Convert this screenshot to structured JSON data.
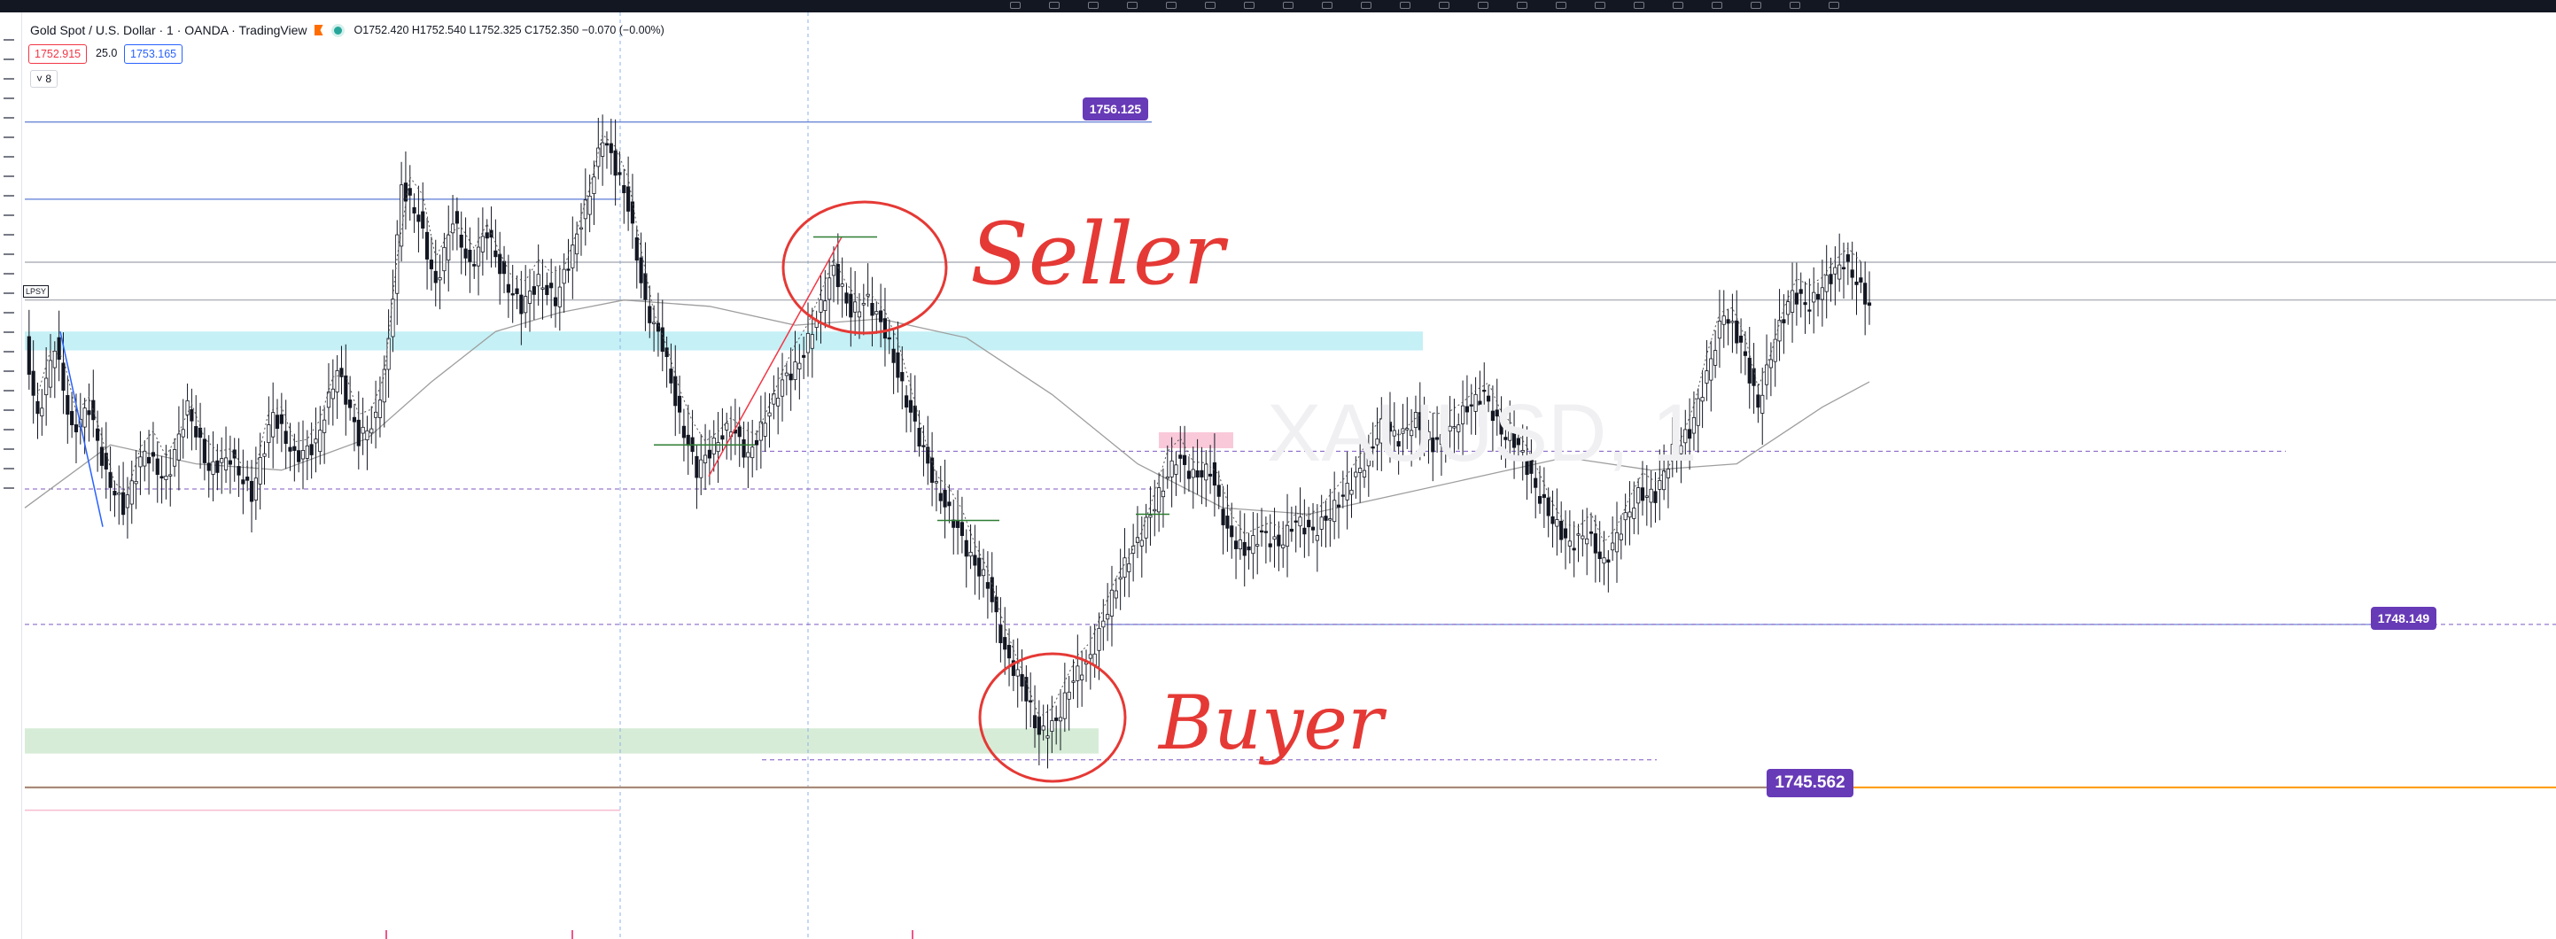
{
  "header": {
    "symbol": "Gold Spot / U.S. Dollar · 1 · OANDA · TradingView",
    "ohlc": "O1752.420 H1752.540 L1752.325 C1752.350 −0.070 (−0.00%)"
  },
  "trade": {
    "bid": "1752.915",
    "spread": "25.0",
    "ask": "1753.165"
  },
  "indicators_toggle": "˅ 8",
  "lp_tag": "LPSY",
  "price_labels": [
    "1756.125",
    "1748.149",
    "1745.562"
  ],
  "annotations": {
    "seller": "Seller",
    "buyer": "Buyer"
  },
  "colors": {
    "up": "#131722",
    "down": "#131722",
    "wick": "#131722",
    "zone_top": "#b2ebf2",
    "zone_bottom": "#c8e6c9",
    "zone_mid": "#f8bbd0",
    "ma": "#9e9e9e",
    "hline": "#5b7bd5",
    "price_line": "#ff9800",
    "annotation": "#e53935",
    "label_bg": "#673ab7"
  },
  "chart_data": {
    "type": "candlestick",
    "symbol": "XAUUSD",
    "timeframe": "1",
    "ylim": [
      1744.0,
      1757.5
    ],
    "series": [
      {
        "name": "price",
        "anchors": [
          [
            0,
            1752.6
          ],
          [
            3,
            1751.4
          ],
          [
            7,
            1752.6
          ],
          [
            11,
            1751.2
          ],
          [
            15,
            1751.6
          ],
          [
            19,
            1750.5
          ],
          [
            23,
            1750.0
          ],
          [
            28,
            1750.9
          ],
          [
            33,
            1750.4
          ],
          [
            38,
            1751.6
          ],
          [
            43,
            1750.6
          ],
          [
            48,
            1750.8
          ],
          [
            53,
            1750.2
          ],
          [
            58,
            1751.5
          ],
          [
            63,
            1750.8
          ],
          [
            68,
            1751.0
          ],
          [
            73,
            1752.2
          ],
          [
            78,
            1751.1
          ],
          [
            82,
            1751.4
          ],
          [
            85,
            1752.6
          ],
          [
            88,
            1755.1
          ],
          [
            92,
            1754.6
          ],
          [
            96,
            1753.5
          ],
          [
            100,
            1754.6
          ],
          [
            104,
            1753.8
          ],
          [
            108,
            1754.4
          ],
          [
            112,
            1753.6
          ],
          [
            116,
            1753.2
          ],
          [
            120,
            1753.6
          ],
          [
            124,
            1753.3
          ],
          [
            128,
            1754.1
          ],
          [
            132,
            1755.0
          ],
          [
            135,
            1755.9
          ],
          [
            138,
            1755.4
          ],
          [
            141,
            1754.8
          ],
          [
            145,
            1753.2
          ],
          [
            149,
            1752.6
          ],
          [
            153,
            1751.4
          ],
          [
            157,
            1750.6
          ],
          [
            161,
            1751.0
          ],
          [
            165,
            1751.3
          ],
          [
            169,
            1750.8
          ],
          [
            173,
            1751.4
          ],
          [
            177,
            1752.0
          ],
          [
            181,
            1752.3
          ],
          [
            185,
            1753.0
          ],
          [
            189,
            1753.8
          ],
          [
            193,
            1753.1
          ],
          [
            197,
            1753.3
          ],
          [
            201,
            1752.8
          ],
          [
            205,
            1751.9
          ],
          [
            209,
            1751.1
          ],
          [
            213,
            1750.3
          ],
          [
            217,
            1749.8
          ],
          [
            221,
            1749.2
          ],
          [
            225,
            1748.8
          ],
          [
            229,
            1747.7
          ],
          [
            233,
            1747.2
          ],
          [
            237,
            1746.4
          ],
          [
            241,
            1746.6
          ],
          [
            245,
            1747.3
          ],
          [
            249,
            1747.6
          ],
          [
            253,
            1748.4
          ],
          [
            257,
            1749.1
          ],
          [
            261,
            1749.6
          ],
          [
            265,
            1750.2
          ],
          [
            269,
            1750.8
          ],
          [
            273,
            1750.5
          ],
          [
            277,
            1750.6
          ],
          [
            281,
            1749.6
          ],
          [
            285,
            1749.3
          ],
          [
            289,
            1749.6
          ],
          [
            293,
            1749.4
          ],
          [
            297,
            1749.8
          ],
          [
            301,
            1749.6
          ],
          [
            305,
            1749.9
          ],
          [
            309,
            1750.3
          ],
          [
            313,
            1750.7
          ],
          [
            317,
            1751.3
          ],
          [
            321,
            1751.1
          ],
          [
            325,
            1751.4
          ],
          [
            329,
            1751.0
          ],
          [
            333,
            1751.2
          ],
          [
            337,
            1751.6
          ],
          [
            341,
            1751.8
          ],
          [
            345,
            1751.2
          ],
          [
            349,
            1751.0
          ],
          [
            353,
            1750.3
          ],
          [
            357,
            1749.8
          ],
          [
            361,
            1749.4
          ],
          [
            365,
            1749.6
          ],
          [
            369,
            1749.1
          ],
          [
            373,
            1749.7
          ],
          [
            377,
            1750.2
          ],
          [
            381,
            1750.2
          ],
          [
            385,
            1750.9
          ],
          [
            389,
            1751.2
          ],
          [
            393,
            1752.1
          ],
          [
            397,
            1753.1
          ],
          [
            401,
            1752.6
          ],
          [
            405,
            1751.6
          ],
          [
            409,
            1752.7
          ],
          [
            413,
            1753.4
          ],
          [
            417,
            1753.2
          ],
          [
            421,
            1753.6
          ],
          [
            425,
            1753.9
          ],
          [
            428,
            1753.6
          ],
          [
            431,
            1753.2
          ]
        ]
      },
      {
        "name": "moving average",
        "points": [
          [
            0,
            1750.0
          ],
          [
            20,
            1751.0
          ],
          [
            40,
            1750.7
          ],
          [
            60,
            1750.6
          ],
          [
            80,
            1751.1
          ],
          [
            95,
            1752.0
          ],
          [
            110,
            1752.8
          ],
          [
            125,
            1753.1
          ],
          [
            140,
            1753.3
          ],
          [
            160,
            1753.2
          ],
          [
            180,
            1752.9
          ],
          [
            200,
            1753.0
          ],
          [
            220,
            1752.7
          ],
          [
            240,
            1751.8
          ],
          [
            260,
            1750.7
          ],
          [
            280,
            1750.0
          ],
          [
            300,
            1749.9
          ],
          [
            320,
            1750.2
          ],
          [
            340,
            1750.5
          ],
          [
            360,
            1750.8
          ],
          [
            380,
            1750.6
          ],
          [
            400,
            1750.7
          ],
          [
            420,
            1751.6
          ],
          [
            431,
            1752.0
          ]
        ]
      }
    ],
    "horizontal_levels": [
      1756.125,
      1754.9,
      1753.9,
      1753.3,
      1748.149,
      1745.562
    ],
    "dashed_levels": [
      1750.9,
      1750.3,
      1748.15,
      1746.0
    ],
    "zones": [
      {
        "name": "supply",
        "from": 1752.5,
        "to": 1752.8
      },
      {
        "name": "demand",
        "from": 1746.1,
        "to": 1746.5
      }
    ],
    "grid": false
  }
}
